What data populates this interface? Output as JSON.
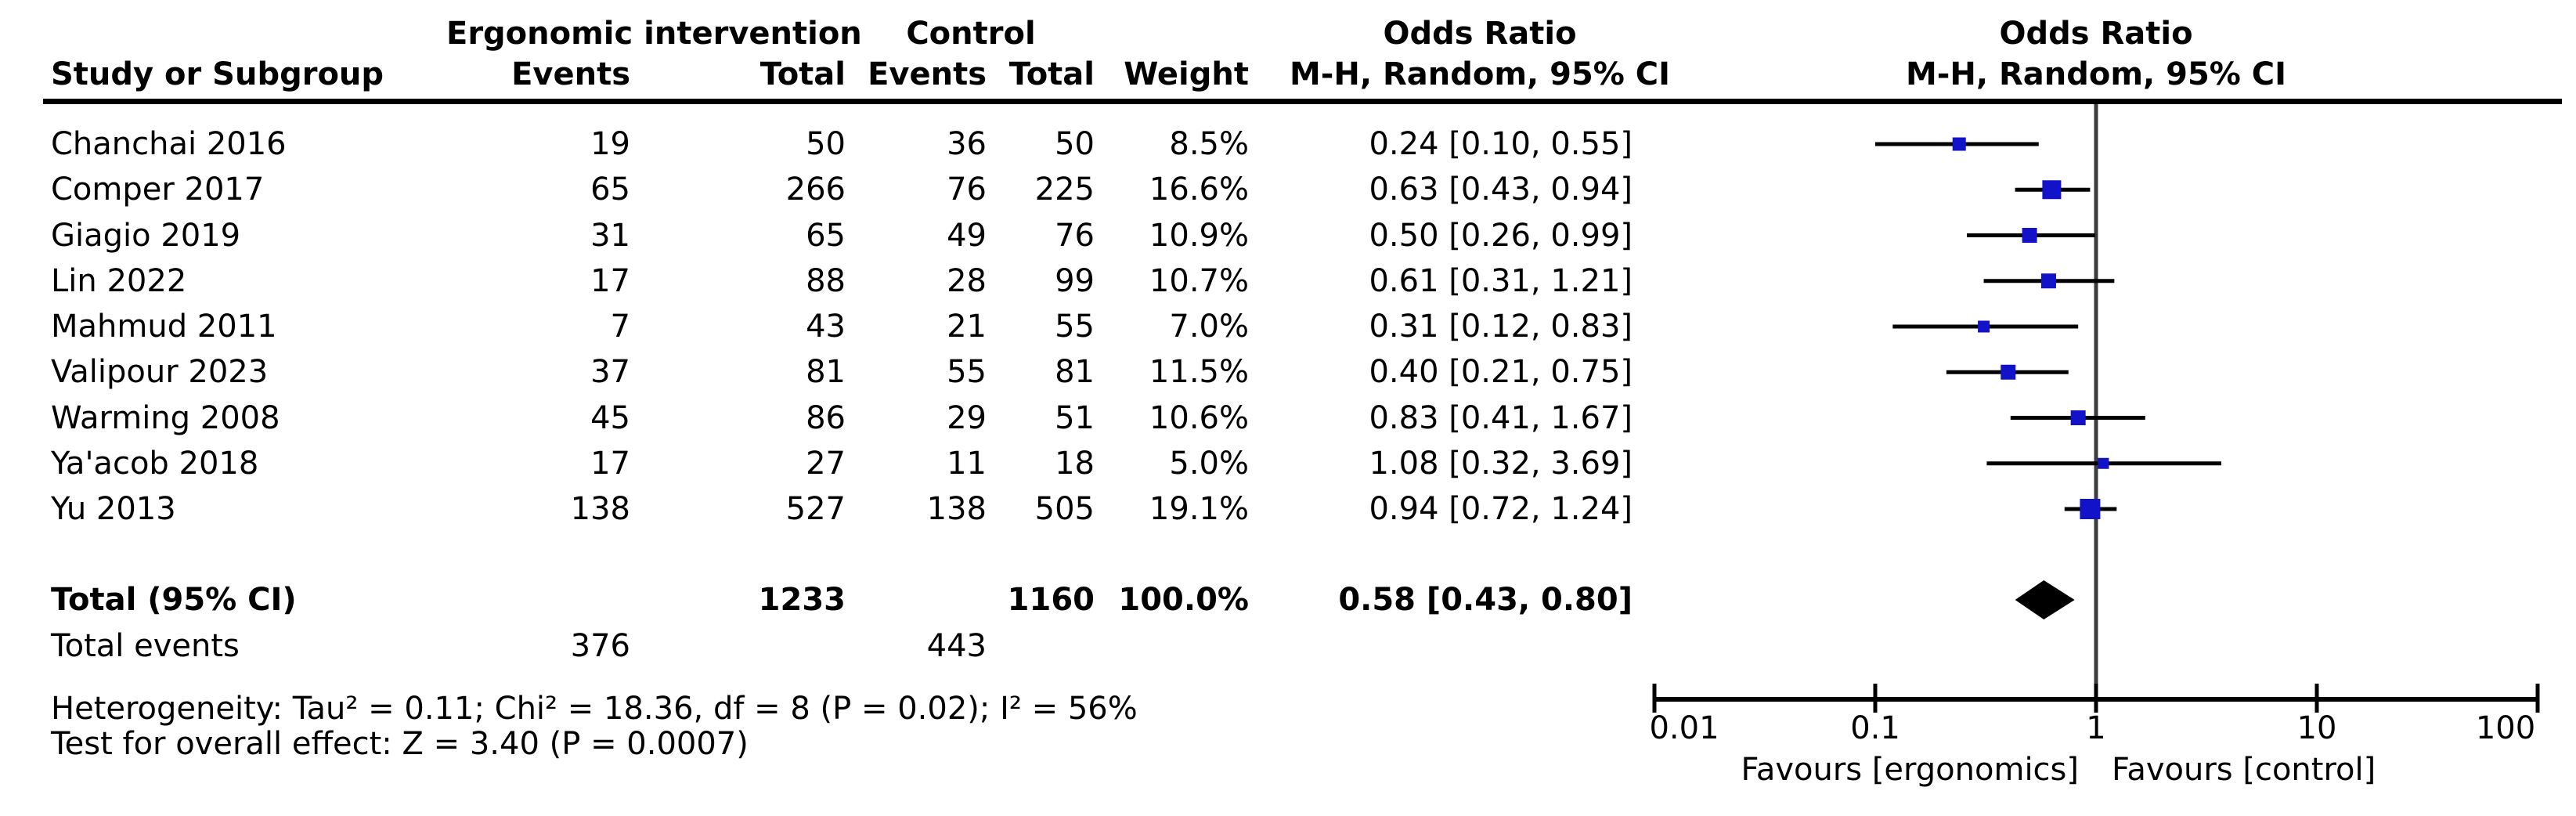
{
  "header": {
    "study_col": "Study or Subgroup",
    "group_intervention": "Ergonomic intervention",
    "group_control": "Control",
    "events_col_1": "Events",
    "total_col_1": "Total",
    "events_col_2": "Events",
    "total_col_2": "Total",
    "weight_col": "Weight",
    "or_col_title": "Odds Ratio",
    "or_col_subtitle": "M-H, Random, 95% CI",
    "plot_title": "Odds Ratio",
    "plot_subtitle": "M-H, Random, 95% CI"
  },
  "chart_data": {
    "type": "forest",
    "effect_measure": "Odds Ratio",
    "model": "M-H, Random, 95% CI",
    "x_scale": "log10",
    "x_range": [
      0.01,
      100
    ],
    "x_ticks": [
      0.01,
      0.1,
      1,
      10,
      100
    ],
    "x_tick_labels": [
      "0.01",
      "0.1",
      "1",
      "10",
      "100"
    ],
    "null_line": 1,
    "favours_left": "Favours [ergonomics]",
    "favours_right": "Favours [control]",
    "studies": [
      {
        "name": "Chanchai 2016",
        "events1": "19",
        "total1": "50",
        "events2": "36",
        "total2": "50",
        "weight": "8.5%",
        "ci_text": "0.24 [0.10, 0.55]",
        "or": 0.24,
        "lo": 0.1,
        "hi": 0.55,
        "marker": 17
      },
      {
        "name": "Comper 2017",
        "events1": "65",
        "total1": "266",
        "events2": "76",
        "total2": "225",
        "weight": "16.6%",
        "ci_text": "0.63 [0.43, 0.94]",
        "or": 0.63,
        "lo": 0.43,
        "hi": 0.94,
        "marker": 24
      },
      {
        "name": "Giagio 2019",
        "events1": "31",
        "total1": "65",
        "events2": "49",
        "total2": "76",
        "weight": "10.9%",
        "ci_text": "0.50 [0.26, 0.99]",
        "or": 0.5,
        "lo": 0.26,
        "hi": 0.99,
        "marker": 19
      },
      {
        "name": "Lin 2022",
        "events1": "17",
        "total1": "88",
        "events2": "28",
        "total2": "99",
        "weight": "10.7%",
        "ci_text": "0.61 [0.31, 1.21]",
        "or": 0.61,
        "lo": 0.31,
        "hi": 1.21,
        "marker": 19
      },
      {
        "name": "Mahmud 2011",
        "events1": "7",
        "total1": "43",
        "events2": "21",
        "total2": "55",
        "weight": "7.0%",
        "ci_text": "0.31 [0.12, 0.83]",
        "or": 0.31,
        "lo": 0.12,
        "hi": 0.83,
        "marker": 15
      },
      {
        "name": "Valipour 2023",
        "events1": "37",
        "total1": "81",
        "events2": "55",
        "total2": "81",
        "weight": "11.5%",
        "ci_text": "0.40 [0.21, 0.75]",
        "or": 0.4,
        "lo": 0.21,
        "hi": 0.75,
        "marker": 19
      },
      {
        "name": "Warming 2008",
        "events1": "45",
        "total1": "86",
        "events2": "29",
        "total2": "51",
        "weight": "10.6%",
        "ci_text": "0.83 [0.41, 1.67]",
        "or": 0.83,
        "lo": 0.41,
        "hi": 1.67,
        "marker": 19
      },
      {
        "name": "Ya'acob 2018",
        "events1": "17",
        "total1": "27",
        "events2": "11",
        "total2": "18",
        "weight": "5.0%",
        "ci_text": "1.08 [0.32, 3.69]",
        "or": 1.08,
        "lo": 0.32,
        "hi": 3.69,
        "marker": 14
      },
      {
        "name": "Yu 2013",
        "events1": "138",
        "total1": "527",
        "events2": "138",
        "total2": "505",
        "weight": "19.1%",
        "ci_text": "0.94 [0.72, 1.24]",
        "or": 0.94,
        "lo": 0.72,
        "hi": 1.24,
        "marker": 26
      }
    ],
    "total": {
      "label": "Total (95% CI)",
      "total1": "1233",
      "total2": "1160",
      "weight": "100.0%",
      "ci_text": "0.58 [0.43, 0.80]",
      "or": 0.58,
      "lo": 0.43,
      "hi": 0.8
    },
    "total_events": {
      "label": "Total events",
      "events1": "376",
      "events2": "443"
    },
    "heterogeneity": "Heterogeneity: Tau² = 0.11; Chi² = 18.36, df = 8 (P = 0.02); I² = 56%",
    "overall_effect": "Test for overall effect: Z = 3.40 (P = 0.0007)"
  },
  "colors": {
    "marker": "#1212C8",
    "ci_line": "#000000",
    "axis_line": "#000000",
    "null_line": "#3C3C3C",
    "diamond": "#000000",
    "text": "#000000"
  }
}
